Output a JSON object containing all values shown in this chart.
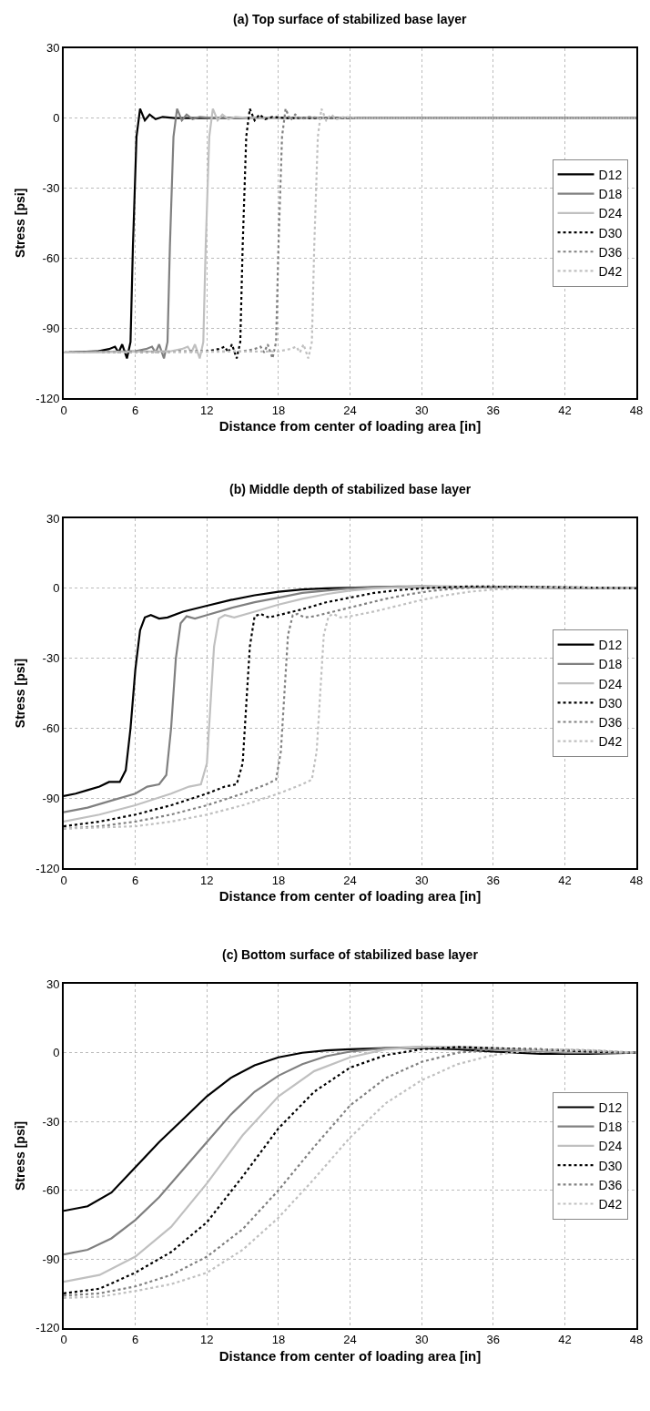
{
  "chart_data": [
    {
      "type": "line",
      "title": "(a) Top surface of stabilized base layer",
      "xlabel": "Distance from center of loading area [in]",
      "ylabel": "Stress [psi]",
      "xlim": [
        0,
        48
      ],
      "xticks": [
        0,
        6,
        12,
        18,
        24,
        30,
        36,
        42,
        48
      ],
      "ylim": [
        -120,
        30
      ],
      "yticks": [
        -120,
        -90,
        -60,
        -30,
        0,
        30
      ],
      "grid": true,
      "legend": "right",
      "marker": "none",
      "series": [
        {
          "name": "D12",
          "color": "#000000",
          "line_style": "solid",
          "x": [
            0,
            2.8,
            3.8,
            4.3,
            4.6,
            4.9,
            5.3,
            5.6,
            5.8,
            6.1,
            6.4,
            6.8,
            7.2,
            7.7,
            8.3,
            9.3,
            48
          ],
          "values": [
            -100.5,
            -100,
            -99,
            -98,
            -100.5,
            -97,
            -103,
            -96,
            -55,
            -8,
            4,
            -1,
            1.5,
            -0.5,
            0.5,
            0,
            0
          ]
        },
        {
          "name": "D18",
          "color": "#808080",
          "line_style": "solid",
          "x": [
            0,
            5.9,
            6.9,
            7.4,
            7.7,
            8.0,
            8.4,
            8.7,
            8.9,
            9.2,
            9.5,
            9.9,
            10.3,
            10.8,
            11.4,
            12.4,
            48
          ],
          "values": [
            -100.5,
            -100,
            -99,
            -98,
            -100.5,
            -97,
            -103,
            -96,
            -55,
            -8,
            4,
            -1,
            1.5,
            -0.5,
            0.5,
            0,
            0
          ]
        },
        {
          "name": "D24",
          "color": "#c0c0c0",
          "line_style": "solid",
          "x": [
            0,
            8.9,
            9.9,
            10.4,
            10.7,
            11.0,
            11.4,
            11.7,
            11.9,
            12.2,
            12.5,
            12.9,
            13.3,
            13.8,
            14.4,
            15.4,
            48
          ],
          "values": [
            -100.5,
            -100,
            -99,
            -98,
            -100.5,
            -97,
            -103,
            -96,
            -55,
            -8,
            4,
            -1,
            1.5,
            -0.5,
            0.5,
            0,
            0
          ]
        },
        {
          "name": "D30",
          "color": "#000000",
          "line_style": "dotted",
          "x": [
            0,
            12,
            13,
            13.5,
            13.8,
            14.1,
            14.5,
            14.8,
            15,
            15.3,
            15.6,
            16,
            16.4,
            16.9,
            17.5,
            18.5,
            48
          ],
          "values": [
            -100.5,
            -100,
            -99,
            -98,
            -100.5,
            -97,
            -103,
            -96,
            -55,
            -8,
            4,
            -1,
            1.5,
            -0.5,
            0.5,
            0,
            0
          ]
        },
        {
          "name": "D36",
          "color": "#808080",
          "line_style": "dotted",
          "x": [
            0,
            15,
            16,
            16.5,
            16.8,
            17.1,
            17.5,
            17.8,
            18,
            18.3,
            18.6,
            19,
            19.4,
            19.9,
            20.5,
            21.5,
            48
          ],
          "values": [
            -100.5,
            -100,
            -99,
            -98,
            -100.5,
            -97,
            -103,
            -96,
            -55,
            -8,
            4,
            -1,
            1.5,
            -0.5,
            0.5,
            0,
            0
          ]
        },
        {
          "name": "D42",
          "color": "#c0c0c0",
          "line_style": "dotted",
          "x": [
            0,
            18,
            19,
            19.5,
            19.8,
            20.1,
            20.5,
            20.8,
            21,
            21.3,
            21.6,
            22,
            22.4,
            22.9,
            23.5,
            24.5,
            48
          ],
          "values": [
            -100.5,
            -100,
            -99,
            -98,
            -100.5,
            -97,
            -103,
            -96,
            -55,
            -8,
            4,
            -1,
            1.5,
            -0.5,
            0.5,
            0,
            0
          ]
        }
      ]
    },
    {
      "type": "line",
      "title": "(b) Middle depth of stabilized base layer",
      "xlabel": "Distance from center of loading area [in]",
      "ylabel": "Stress [psi]",
      "xlim": [
        0,
        48
      ],
      "xticks": [
        0,
        6,
        12,
        18,
        24,
        30,
        36,
        42,
        48
      ],
      "ylim": [
        -120,
        30
      ],
      "yticks": [
        -120,
        -90,
        -60,
        -30,
        0,
        30
      ],
      "grid": true,
      "legend": "right",
      "marker": "none",
      "series": [
        {
          "name": "D12",
          "color": "#000000",
          "line_style": "solid",
          "x": [
            0,
            1,
            2,
            3,
            3.8,
            4.7,
            5.2,
            5.6,
            6,
            6.4,
            6.8,
            7.3,
            8,
            8.7,
            10,
            12,
            14,
            16,
            18,
            20,
            22,
            26,
            30,
            36,
            48
          ],
          "values": [
            -89,
            -88,
            -86.5,
            -85,
            -83,
            -83,
            -78,
            -60,
            -35,
            -18,
            -12.5,
            -11.5,
            -13,
            -12.5,
            -10,
            -7.5,
            -5,
            -3,
            -1.5,
            -0.5,
            0,
            0.5,
            0.8,
            0.5,
            0
          ]
        },
        {
          "name": "D18",
          "color": "#808080",
          "line_style": "solid",
          "x": [
            0,
            2,
            4,
            6,
            7,
            8,
            8.6,
            9,
            9.4,
            9.8,
            10.3,
            11,
            12,
            14,
            16,
            18,
            20,
            22,
            24,
            28,
            32,
            40,
            48
          ],
          "values": [
            -96,
            -94,
            -91,
            -88,
            -85,
            -84,
            -80,
            -60,
            -30,
            -15,
            -12,
            -13,
            -11.5,
            -8.5,
            -6,
            -4,
            -2,
            -1,
            0,
            0.8,
            0.8,
            0.3,
            0
          ]
        },
        {
          "name": "D24",
          "color": "#c0c0c0",
          "line_style": "solid",
          "x": [
            0,
            3,
            6,
            9,
            10.5,
            11.5,
            12,
            12.3,
            12.6,
            13,
            13.5,
            14.3,
            16,
            18,
            20,
            22,
            24,
            26,
            30,
            36,
            48
          ],
          "values": [
            -100,
            -97,
            -93,
            -88,
            -85,
            -84,
            -75,
            -50,
            -25,
            -13,
            -11.5,
            -12.5,
            -10,
            -7,
            -4.5,
            -2.5,
            -1,
            0,
            0.8,
            0.6,
            0
          ]
        },
        {
          "name": "D30",
          "color": "#000000",
          "line_style": "dotted",
          "x": [
            0,
            3,
            6,
            9,
            12,
            13.5,
            14.5,
            15,
            15.3,
            15.6,
            16,
            16.5,
            17.2,
            18,
            20,
            22,
            24,
            26,
            28,
            30,
            34,
            40,
            48
          ],
          "values": [
            -102,
            -100,
            -97,
            -93,
            -88,
            -85,
            -84,
            -75,
            -50,
            -25,
            -12,
            -11,
            -12.5,
            -11.5,
            -9,
            -6,
            -4,
            -2,
            -0.8,
            0,
            0.8,
            0.6,
            0
          ]
        },
        {
          "name": "D36",
          "color": "#808080",
          "line_style": "dotted",
          "x": [
            0,
            3,
            6,
            9,
            12,
            15,
            17,
            17.8,
            18.2,
            18.5,
            18.8,
            19.2,
            19.6,
            20.2,
            21,
            23,
            25,
            27,
            29,
            31,
            33,
            37,
            42,
            48
          ],
          "values": [
            -103,
            -102,
            -100,
            -97,
            -93,
            -88,
            -84,
            -82,
            -70,
            -45,
            -20,
            -11.5,
            -11,
            -12.5,
            -12,
            -9.5,
            -7,
            -4.5,
            -2.5,
            -1,
            0,
            0.8,
            0.5,
            0
          ]
        },
        {
          "name": "D42",
          "color": "#c0c0c0",
          "line_style": "dotted",
          "x": [
            0,
            6,
            9,
            12,
            15,
            18,
            20,
            20.8,
            21.2,
            21.5,
            21.8,
            22.2,
            22.6,
            23.2,
            24,
            26,
            28,
            30,
            32,
            34,
            36,
            38,
            42,
            48
          ],
          "values": [
            -103,
            -102,
            -100,
            -97,
            -93,
            -88,
            -84,
            -82,
            -70,
            -45,
            -20,
            -12,
            -11,
            -12.5,
            -12,
            -10,
            -7.5,
            -5,
            -3,
            -1.5,
            -0.5,
            0,
            0.5,
            0
          ]
        }
      ]
    },
    {
      "type": "line",
      "title": "(c) Bottom surface of stabilized base layer",
      "xlabel": "Distance from center of loading area [in]",
      "ylabel": "Stress [psi]",
      "xlim": [
        0,
        48
      ],
      "xticks": [
        0,
        6,
        12,
        18,
        24,
        30,
        36,
        42,
        48
      ],
      "ylim": [
        -120,
        30
      ],
      "yticks": [
        -120,
        -90,
        -60,
        -30,
        0,
        30
      ],
      "grid": true,
      "legend": "right",
      "marker": "none",
      "series": [
        {
          "name": "D12",
          "color": "#000000",
          "line_style": "solid",
          "x": [
            0,
            2,
            4,
            6,
            8,
            10,
            12,
            14,
            16,
            18,
            20,
            22,
            24,
            27,
            30,
            33,
            36,
            40,
            44,
            48
          ],
          "values": [
            -69,
            -67,
            -61,
            -50,
            -39,
            -29,
            -19,
            -11,
            -5.5,
            -2,
            0,
            1,
            1.5,
            2,
            2,
            1.5,
            0.5,
            -0.5,
            -0.5,
            0
          ]
        },
        {
          "name": "D18",
          "color": "#808080",
          "line_style": "solid",
          "x": [
            0,
            2,
            4,
            6,
            8,
            10,
            12,
            14,
            16,
            18,
            20,
            22,
            24,
            27,
            30,
            34,
            38,
            42,
            48
          ],
          "values": [
            -88,
            -86,
            -81,
            -73,
            -63,
            -51,
            -39,
            -27,
            -17,
            -10,
            -5,
            -1.5,
            0.5,
            2,
            2.5,
            2,
            1,
            0,
            0
          ]
        },
        {
          "name": "D24",
          "color": "#c0c0c0",
          "line_style": "solid",
          "x": [
            0,
            3,
            6,
            9,
            12,
            15,
            18,
            21,
            24,
            27,
            30,
            34,
            38,
            42,
            48
          ],
          "values": [
            -100,
            -97,
            -89,
            -76,
            -57,
            -36,
            -19,
            -8,
            -2,
            1.5,
            2.5,
            2.5,
            1.5,
            0.5,
            0
          ]
        },
        {
          "name": "D30",
          "color": "#000000",
          "line_style": "dotted",
          "x": [
            0,
            3,
            6,
            9,
            12,
            15,
            18,
            21,
            24,
            27,
            30,
            33,
            36,
            40,
            44,
            48
          ],
          "values": [
            -105,
            -103,
            -96,
            -87,
            -74,
            -54,
            -33,
            -17,
            -6.5,
            -1,
            1.5,
            2.5,
            2,
            1.5,
            0.5,
            0
          ]
        },
        {
          "name": "D36",
          "color": "#808080",
          "line_style": "dotted",
          "x": [
            0,
            3,
            6,
            9,
            12,
            15,
            18,
            21,
            24,
            27,
            30,
            33,
            36,
            40,
            44,
            48
          ],
          "values": [
            -106,
            -105,
            -102,
            -97,
            -89,
            -77,
            -60,
            -41,
            -23,
            -11,
            -4,
            0,
            1.5,
            1.5,
            1,
            0
          ]
        },
        {
          "name": "D42",
          "color": "#c0c0c0",
          "line_style": "dotted",
          "x": [
            0,
            3,
            6,
            9,
            12,
            15,
            18,
            21,
            24,
            27,
            30,
            33,
            36,
            39,
            42,
            45,
            48
          ],
          "values": [
            -107,
            -106.5,
            -104,
            -101,
            -96,
            -86,
            -72,
            -55,
            -37,
            -22,
            -12,
            -5,
            -1,
            1,
            1.5,
            1,
            0
          ]
        }
      ]
    }
  ]
}
